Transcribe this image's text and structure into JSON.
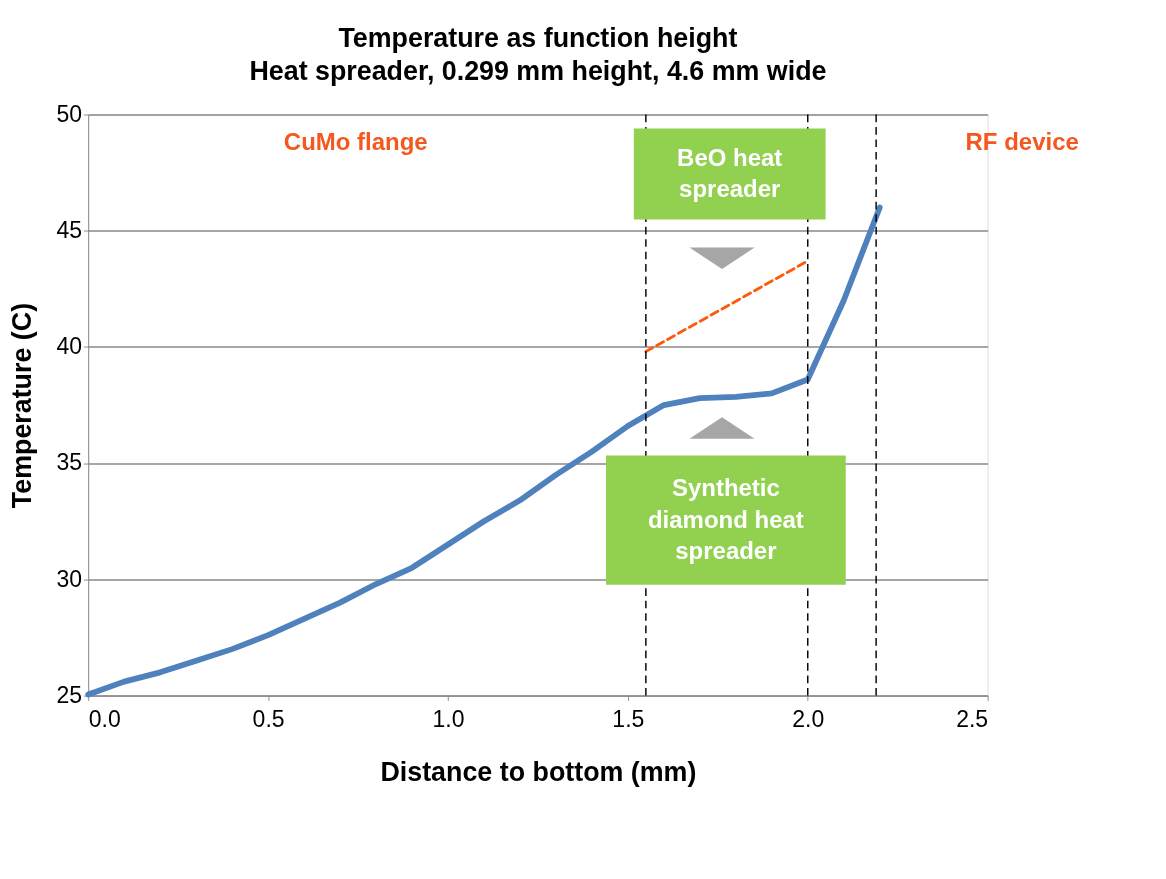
{
  "chart_data": {
    "type": "line",
    "title": "Temperature as function height",
    "subtitle": "Heat spreader, 0.299 mm height, 4.6 mm wide",
    "xlabel": "Distance to bottom (mm)",
    "ylabel": "Temperature (C)",
    "x": [
      0,
      0.1,
      0.2,
      0.3,
      0.4,
      0.5,
      0.6,
      0.7,
      0.8,
      0.9,
      1.0,
      1.1,
      1.2,
      1.3,
      1.4,
      1.5,
      1.6,
      1.7,
      1.8,
      1.9,
      2.0,
      2.1,
      2.2
    ],
    "series": [
      {
        "color": "#4f81bd",
        "values": [
          25.05,
          25.6,
          26,
          26.5,
          27,
          27.6,
          28.3,
          29,
          29.8,
          30.5,
          31.5,
          32.5,
          33.4,
          34.5,
          35.5,
          36.6,
          37.5,
          37.8,
          37.85,
          38,
          38.6,
          42,
          46
        ]
      },
      {
        "type": "line",
        "x": [
          1.55,
          2.0
        ],
        "values": [
          39.8,
          43.7
        ],
        "color": "#ff5a0a",
        "line_style": "dashed"
      }
    ],
    "xlim": [
      0,
      2.5
    ],
    "xticks": [
      {
        "value": 0,
        "label": "0.0"
      },
      {
        "value": 0.5,
        "label": "0.5"
      },
      {
        "value": 1,
        "label": "1.0"
      },
      {
        "value": 1.5,
        "label": "1.5"
      },
      {
        "value": 2,
        "label": "2.0"
      },
      {
        "value": 2.5,
        "label": "2.5"
      }
    ],
    "ylim": [
      25,
      50
    ],
    "yticks": [
      25,
      30,
      35,
      40,
      45,
      50
    ],
    "grid": "y",
    "marker": "none",
    "line_style": "solid",
    "ref_lines": [
      {
        "axis": "x",
        "value": 1.55,
        "color": "#000000",
        "line_style": "dashed"
      },
      {
        "axis": "x",
        "value": 2.0,
        "color": "#000000",
        "line_style": "dashed"
      },
      {
        "axis": "x",
        "value": 2.19,
        "color": "#000000",
        "line_style": "dashed"
      }
    ],
    "annotations": [
      "CuMo flange",
      "RF device",
      "BeO heat\nspreader",
      "Synthetic\ndiamond heat\nspreader"
    ]
  }
}
